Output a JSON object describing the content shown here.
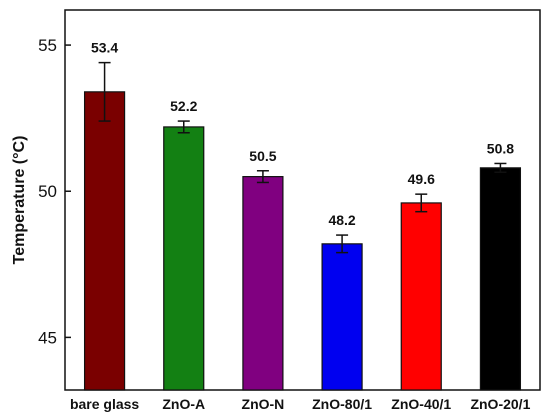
{
  "chart_data": {
    "type": "bar",
    "categories": [
      "bare glass",
      "ZnO-A",
      "ZnO-N",
      "ZnO-80/1",
      "ZnO-40/1",
      "ZnO-20/1"
    ],
    "values": [
      53.4,
      52.2,
      50.5,
      48.2,
      49.6,
      50.8
    ],
    "value_labels": [
      "53.4",
      "52.2",
      "50.5",
      "48.2",
      "49.6",
      "50.8"
    ],
    "errors": [
      1.0,
      0.2,
      0.2,
      0.3,
      0.3,
      0.15
    ],
    "colors": [
      "#7a0000",
      "#138013",
      "#800080",
      "#0000f0",
      "#ff0000",
      "#000000"
    ],
    "title": "",
    "xlabel": "",
    "ylabel": "Temperature (°C)",
    "ylim": [
      43.2,
      56.2
    ],
    "yticks": [
      45,
      50,
      55
    ],
    "ytick_labels": [
      "45",
      "50",
      "55"
    ],
    "grid": false,
    "legend": "none"
  }
}
